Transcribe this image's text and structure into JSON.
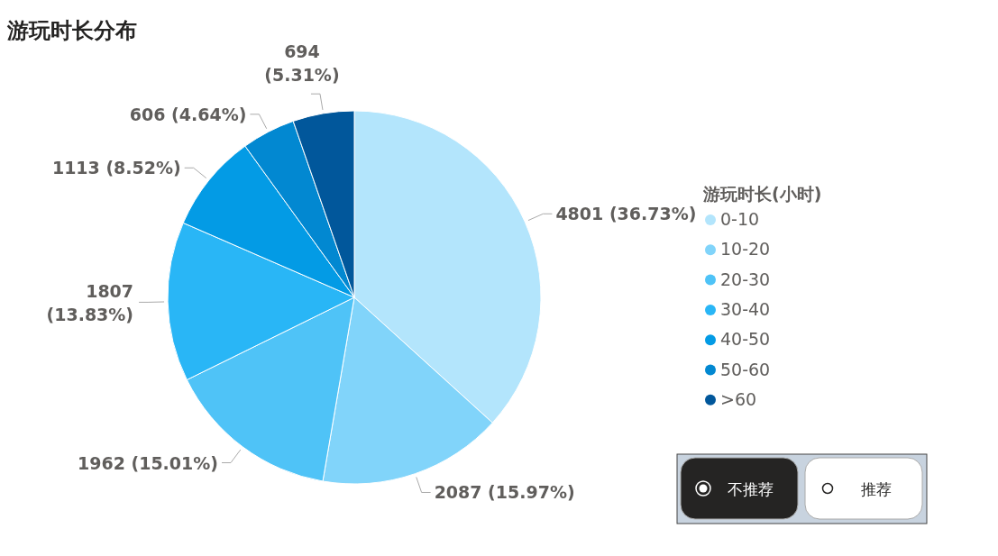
{
  "chart_data": {
    "type": "pie",
    "title": "游玩时长分布",
    "legend_title": "游玩时长(小时)",
    "legend": "right",
    "categories": [
      "0-10",
      "10-20",
      "20-30",
      "30-40",
      "40-50",
      "50-60",
      ">60"
    ],
    "values": [
      4801,
      2087,
      1962,
      1807,
      1113,
      606,
      694
    ],
    "colors": [
      "#b3e5fc",
      "#81d4fa",
      "#4fc3f7",
      "#29b6f6",
      "#039be5",
      "#0288d1",
      "#01579b"
    ],
    "value_labels": [
      "4801 (36.73%)",
      "2087 (15.97%)",
      "1962 (15.01%)",
      "1807 (13.83%)",
      "1113 (8.52%)",
      "606 (4.64%)",
      "694 (5.31%)"
    ],
    "annotations": [
      "不推荐",
      "推荐"
    ]
  }
}
